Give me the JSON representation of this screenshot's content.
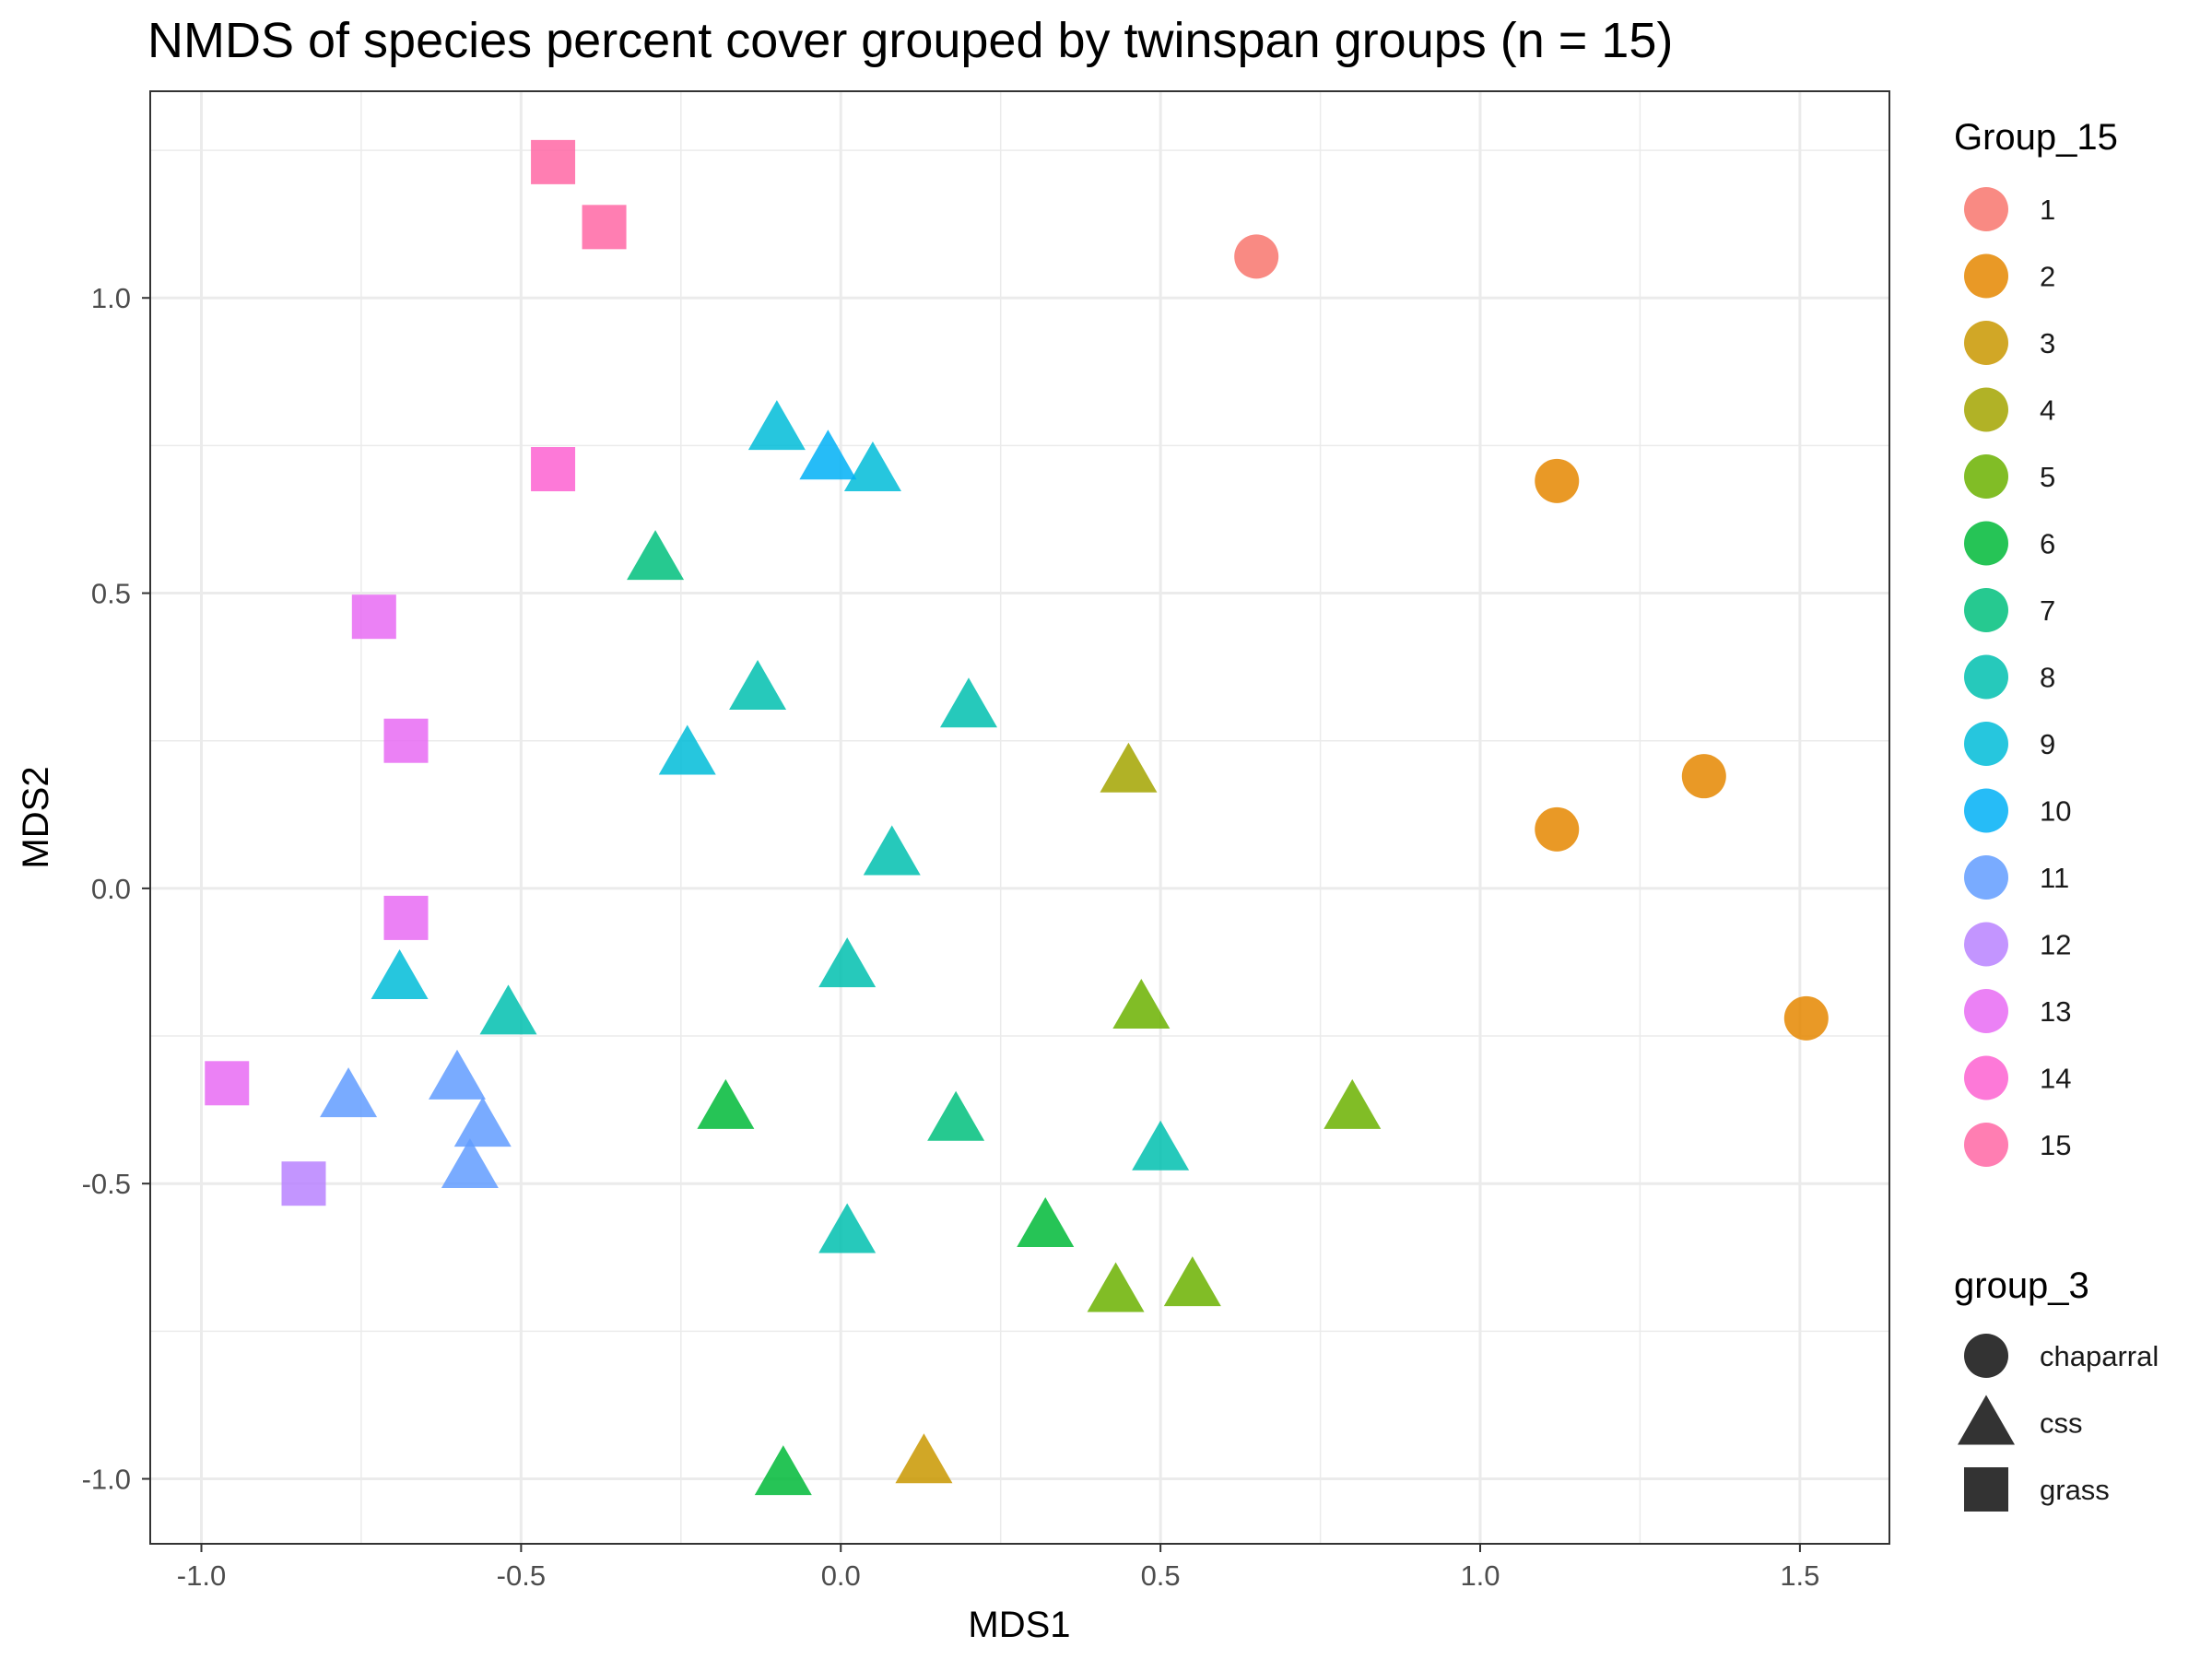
{
  "chart_data": {
    "type": "scatter",
    "title": "NMDS of species percent cover grouped by twinspan groups (n = 15)",
    "xlabel": "MDS1",
    "ylabel": "MDS2",
    "xlim": [
      -1.08,
      1.64
    ],
    "ylim": [
      -1.11,
      1.35
    ],
    "x_ticks": [
      -1.0,
      -0.5,
      0.0,
      0.5,
      1.0,
      1.5
    ],
    "x_tick_labels": [
      "-1.0",
      "-0.5",
      "0.0",
      "0.5",
      "1.0",
      "1.5"
    ],
    "y_ticks": [
      -1.0,
      -0.5,
      0.0,
      0.5,
      1.0
    ],
    "y_tick_labels": [
      "-1.0",
      "-0.5",
      "0.0",
      "0.5",
      "1.0"
    ],
    "grid": true,
    "legend_position": "right",
    "color_legend": {
      "title": "Group_15",
      "items": [
        {
          "label": "1",
          "color": "#F8766D"
        },
        {
          "label": "2",
          "color": "#E58700"
        },
        {
          "label": "3",
          "color": "#C99800"
        },
        {
          "label": "4",
          "color": "#A3A500"
        },
        {
          "label": "5",
          "color": "#6BB100"
        },
        {
          "label": "6",
          "color": "#00BA38"
        },
        {
          "label": "7",
          "color": "#00BF7D"
        },
        {
          "label": "8",
          "color": "#00C0AF"
        },
        {
          "label": "9",
          "color": "#00BCD8"
        },
        {
          "label": "10",
          "color": "#00B0F6"
        },
        {
          "label": "11",
          "color": "#619CFF"
        },
        {
          "label": "12",
          "color": "#B983FF"
        },
        {
          "label": "13",
          "color": "#E76BF3"
        },
        {
          "label": "14",
          "color": "#FD61D1"
        },
        {
          "label": "15",
          "color": "#FF67A4"
        }
      ]
    },
    "shape_legend": {
      "title": "group_3",
      "items": [
        {
          "label": "chaparral",
          "shape": "circle"
        },
        {
          "label": "css",
          "shape": "triangle"
        },
        {
          "label": "grass",
          "shape": "square"
        }
      ]
    },
    "points": [
      {
        "x": 0.65,
        "y": 1.07,
        "group": "1",
        "shape": "chaparral"
      },
      {
        "x": 1.12,
        "y": 0.69,
        "group": "2",
        "shape": "chaparral"
      },
      {
        "x": 1.35,
        "y": 0.19,
        "group": "2",
        "shape": "chaparral"
      },
      {
        "x": 1.12,
        "y": 0.1,
        "group": "2",
        "shape": "chaparral"
      },
      {
        "x": 1.51,
        "y": -0.22,
        "group": "2",
        "shape": "chaparral"
      },
      {
        "x": 0.13,
        "y": -0.97,
        "group": "3",
        "shape": "css"
      },
      {
        "x": 0.45,
        "y": 0.2,
        "group": "4",
        "shape": "css"
      },
      {
        "x": 0.47,
        "y": -0.2,
        "group": "5",
        "shape": "css"
      },
      {
        "x": 0.8,
        "y": -0.37,
        "group": "5",
        "shape": "css"
      },
      {
        "x": 0.43,
        "y": -0.68,
        "group": "5",
        "shape": "css"
      },
      {
        "x": 0.55,
        "y": -0.67,
        "group": "5",
        "shape": "css"
      },
      {
        "x": -0.18,
        "y": -0.37,
        "group": "6",
        "shape": "css"
      },
      {
        "x": 0.32,
        "y": -0.57,
        "group": "6",
        "shape": "css"
      },
      {
        "x": -0.09,
        "y": -0.99,
        "group": "6",
        "shape": "css"
      },
      {
        "x": -0.29,
        "y": 0.56,
        "group": "7",
        "shape": "css"
      },
      {
        "x": 0.18,
        "y": -0.39,
        "group": "7",
        "shape": "css"
      },
      {
        "x": -0.13,
        "y": 0.34,
        "group": "8",
        "shape": "css"
      },
      {
        "x": 0.2,
        "y": 0.31,
        "group": "8",
        "shape": "css"
      },
      {
        "x": 0.08,
        "y": 0.06,
        "group": "8",
        "shape": "css"
      },
      {
        "x": 0.01,
        "y": -0.13,
        "group": "8",
        "shape": "css"
      },
      {
        "x": -0.52,
        "y": -0.21,
        "group": "8",
        "shape": "css"
      },
      {
        "x": 0.5,
        "y": -0.44,
        "group": "8",
        "shape": "css"
      },
      {
        "x": 0.01,
        "y": -0.58,
        "group": "8",
        "shape": "css"
      },
      {
        "x": -0.24,
        "y": 0.23,
        "group": "9",
        "shape": "css"
      },
      {
        "x": -0.69,
        "y": -0.15,
        "group": "9",
        "shape": "css"
      },
      {
        "x": -0.1,
        "y": 0.78,
        "group": "9",
        "shape": "css"
      },
      {
        "x": 0.05,
        "y": 0.71,
        "group": "9",
        "shape": "css"
      },
      {
        "x": -0.02,
        "y": 0.73,
        "group": "10",
        "shape": "css"
      },
      {
        "x": -0.77,
        "y": -0.35,
        "group": "11",
        "shape": "css"
      },
      {
        "x": -0.6,
        "y": -0.32,
        "group": "11",
        "shape": "css"
      },
      {
        "x": -0.56,
        "y": -0.4,
        "group": "11",
        "shape": "css"
      },
      {
        "x": -0.58,
        "y": -0.47,
        "group": "11",
        "shape": "css"
      },
      {
        "x": -0.84,
        "y": -0.5,
        "group": "12",
        "shape": "grass"
      },
      {
        "x": -0.73,
        "y": 0.46,
        "group": "13",
        "shape": "grass"
      },
      {
        "x": -0.68,
        "y": 0.25,
        "group": "13",
        "shape": "grass"
      },
      {
        "x": -0.68,
        "y": -0.05,
        "group": "13",
        "shape": "grass"
      },
      {
        "x": -0.96,
        "y": -0.33,
        "group": "13",
        "shape": "grass"
      },
      {
        "x": -0.45,
        "y": 0.71,
        "group": "14",
        "shape": "grass"
      },
      {
        "x": -0.45,
        "y": 1.23,
        "group": "15",
        "shape": "grass"
      },
      {
        "x": -0.37,
        "y": 1.12,
        "group": "15",
        "shape": "grass"
      }
    ]
  }
}
